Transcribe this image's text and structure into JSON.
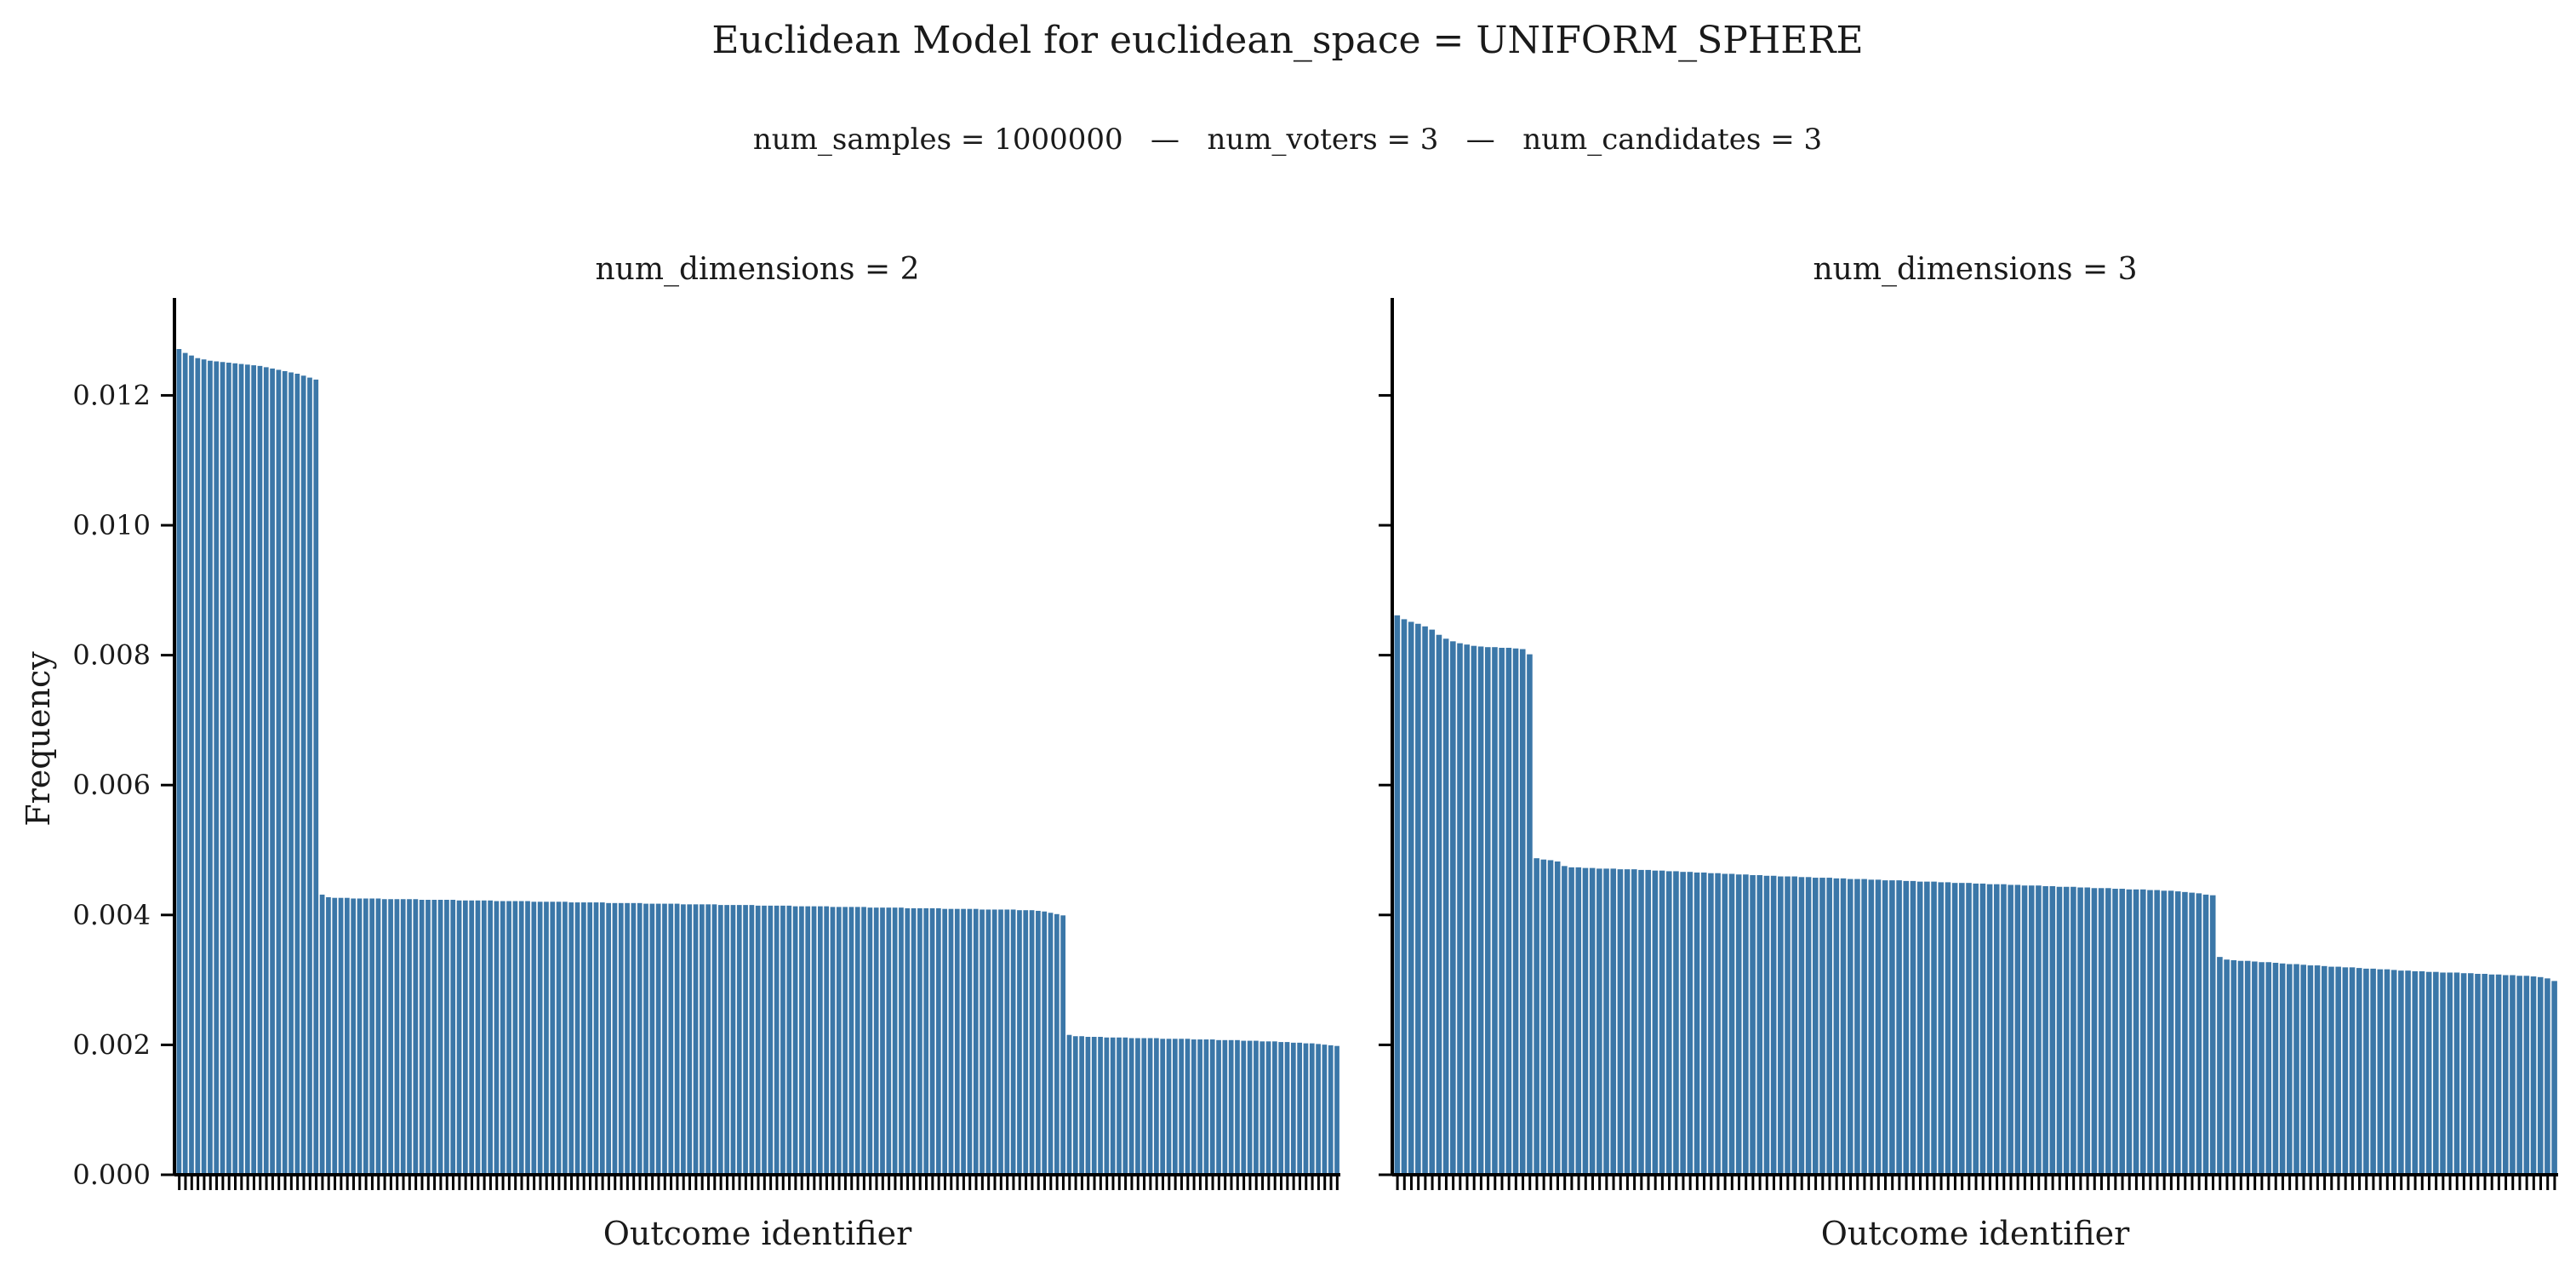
{
  "figure": {
    "title": "Euclidean Model for euclidean_space = UNIFORM_SPHERE",
    "subtitle": "num_samples = 1000000   —   num_voters = 3   —   num_candidates = 3"
  },
  "colors": {
    "bar": "#3b77a8",
    "axis": "#000000",
    "background": "#ffffff"
  },
  "chart_data": [
    {
      "type": "bar",
      "title": "num_dimensions = 2",
      "xlabel": "Outcome identifier",
      "ylabel": "Frequency",
      "ylim": [
        0,
        0.0135
      ],
      "yticks": [
        0.0,
        0.002,
        0.004,
        0.006,
        0.008,
        0.01,
        0.012
      ],
      "ytick_labels": [
        "0.000",
        "0.002",
        "0.004",
        "0.006",
        "0.008",
        "0.010",
        "0.012"
      ],
      "x_tick_labels_shown": false,
      "grid": false,
      "legend": "none",
      "values": [
        0.01272,
        0.01266,
        0.01262,
        0.01258,
        0.01256,
        0.01254,
        0.01253,
        0.01252,
        0.01251,
        0.0125,
        0.01249,
        0.01248,
        0.01247,
        0.01246,
        0.01244,
        0.01242,
        0.0124,
        0.01238,
        0.01236,
        0.01234,
        0.01231,
        0.01228,
        0.01225,
        0.00432,
        0.00428,
        0.00427,
        0.00427,
        0.00427,
        0.00426,
        0.00426,
        0.00426,
        0.00426,
        0.00426,
        0.00425,
        0.00425,
        0.00425,
        0.00425,
        0.00425,
        0.00425,
        0.00424,
        0.00424,
        0.00424,
        0.00424,
        0.00424,
        0.00424,
        0.00423,
        0.00423,
        0.00423,
        0.00423,
        0.00423,
        0.00423,
        0.00422,
        0.00422,
        0.00422,
        0.00422,
        0.00422,
        0.00422,
        0.00421,
        0.00421,
        0.00421,
        0.00421,
        0.00421,
        0.00421,
        0.0042,
        0.0042,
        0.0042,
        0.0042,
        0.0042,
        0.0042,
        0.00419,
        0.00419,
        0.00419,
        0.00419,
        0.00419,
        0.00419,
        0.00418,
        0.00418,
        0.00418,
        0.00418,
        0.00418,
        0.00418,
        0.00417,
        0.00417,
        0.00417,
        0.00417,
        0.00417,
        0.00417,
        0.00416,
        0.00416,
        0.00416,
        0.00416,
        0.00416,
        0.00416,
        0.00415,
        0.00415,
        0.00415,
        0.00415,
        0.00415,
        0.00415,
        0.00414,
        0.00414,
        0.00414,
        0.00414,
        0.00414,
        0.00414,
        0.00413,
        0.00413,
        0.00413,
        0.00413,
        0.00413,
        0.00413,
        0.00412,
        0.00412,
        0.00412,
        0.00412,
        0.00412,
        0.00412,
        0.00411,
        0.00411,
        0.00411,
        0.00411,
        0.00411,
        0.00411,
        0.0041,
        0.0041,
        0.0041,
        0.0041,
        0.0041,
        0.0041,
        0.00409,
        0.00409,
        0.00409,
        0.00409,
        0.00409,
        0.00409,
        0.00408,
        0.00408,
        0.00408,
        0.00407,
        0.00406,
        0.00404,
        0.00402,
        0.004,
        0.00216,
        0.00214,
        0.00214,
        0.00213,
        0.00213,
        0.00213,
        0.00212,
        0.00212,
        0.00212,
        0.00212,
        0.00211,
        0.00211,
        0.00211,
        0.00211,
        0.00211,
        0.0021,
        0.0021,
        0.0021,
        0.0021,
        0.0021,
        0.00209,
        0.00209,
        0.00209,
        0.00209,
        0.00208,
        0.00208,
        0.00208,
        0.00208,
        0.00207,
        0.00207,
        0.00207,
        0.00206,
        0.00206,
        0.00206,
        0.00205,
        0.00205,
        0.00204,
        0.00204,
        0.00203,
        0.00203,
        0.00202,
        0.00201,
        0.002,
        0.00199
      ]
    },
    {
      "type": "bar",
      "title": "num_dimensions = 3",
      "xlabel": "Outcome identifier",
      "ylabel": "",
      "ylim": [
        0,
        0.0135
      ],
      "yticks": [
        0.0,
        0.002,
        0.004,
        0.006,
        0.008,
        0.01,
        0.012
      ],
      "ytick_labels": [
        "",
        "",
        "",
        "",
        "",
        "",
        ""
      ],
      "x_tick_labels_shown": false,
      "grid": false,
      "legend": "none",
      "values": [
        0.00862,
        0.00856,
        0.00852,
        0.00849,
        0.00845,
        0.0084,
        0.00832,
        0.00826,
        0.00822,
        0.00819,
        0.00817,
        0.00815,
        0.00814,
        0.00813,
        0.00813,
        0.00812,
        0.00812,
        0.00811,
        0.0081,
        0.00802,
        0.00488,
        0.00486,
        0.00485,
        0.00483,
        0.00476,
        0.00474,
        0.00474,
        0.00473,
        0.00473,
        0.00472,
        0.00472,
        0.00472,
        0.00471,
        0.00471,
        0.00471,
        0.0047,
        0.0047,
        0.00469,
        0.00469,
        0.00468,
        0.00468,
        0.00467,
        0.00467,
        0.00466,
        0.00466,
        0.00465,
        0.00465,
        0.00464,
        0.00464,
        0.00463,
        0.00463,
        0.00462,
        0.00462,
        0.00461,
        0.00461,
        0.0046,
        0.0046,
        0.0046,
        0.00459,
        0.00459,
        0.00458,
        0.00458,
        0.00458,
        0.00457,
        0.00457,
        0.00456,
        0.00456,
        0.00456,
        0.00455,
        0.00455,
        0.00454,
        0.00454,
        0.00454,
        0.00453,
        0.00453,
        0.00452,
        0.00452,
        0.00452,
        0.00451,
        0.00451,
        0.0045,
        0.0045,
        0.0045,
        0.00449,
        0.00449,
        0.00448,
        0.00448,
        0.00448,
        0.00447,
        0.00447,
        0.00446,
        0.00446,
        0.00446,
        0.00445,
        0.00445,
        0.00444,
        0.00444,
        0.00444,
        0.00443,
        0.00443,
        0.00442,
        0.00442,
        0.00442,
        0.00441,
        0.00441,
        0.0044,
        0.0044,
        0.0044,
        0.00439,
        0.00439,
        0.00438,
        0.00438,
        0.00437,
        0.00436,
        0.00435,
        0.00434,
        0.00432,
        0.00431,
        0.00336,
        0.00332,
        0.00331,
        0.0033,
        0.0033,
        0.00329,
        0.00328,
        0.00328,
        0.00327,
        0.00326,
        0.00325,
        0.00325,
        0.00324,
        0.00323,
        0.00323,
        0.00322,
        0.00321,
        0.00321,
        0.0032,
        0.0032,
        0.00319,
        0.00318,
        0.00318,
        0.00317,
        0.00317,
        0.00316,
        0.00315,
        0.00315,
        0.00314,
        0.00314,
        0.00313,
        0.00313,
        0.00312,
        0.00312,
        0.00312,
        0.00311,
        0.00311,
        0.0031,
        0.0031,
        0.00309,
        0.00309,
        0.00308,
        0.00308,
        0.00307,
        0.00307,
        0.00306,
        0.00305,
        0.00303,
        0.00299
      ]
    }
  ]
}
